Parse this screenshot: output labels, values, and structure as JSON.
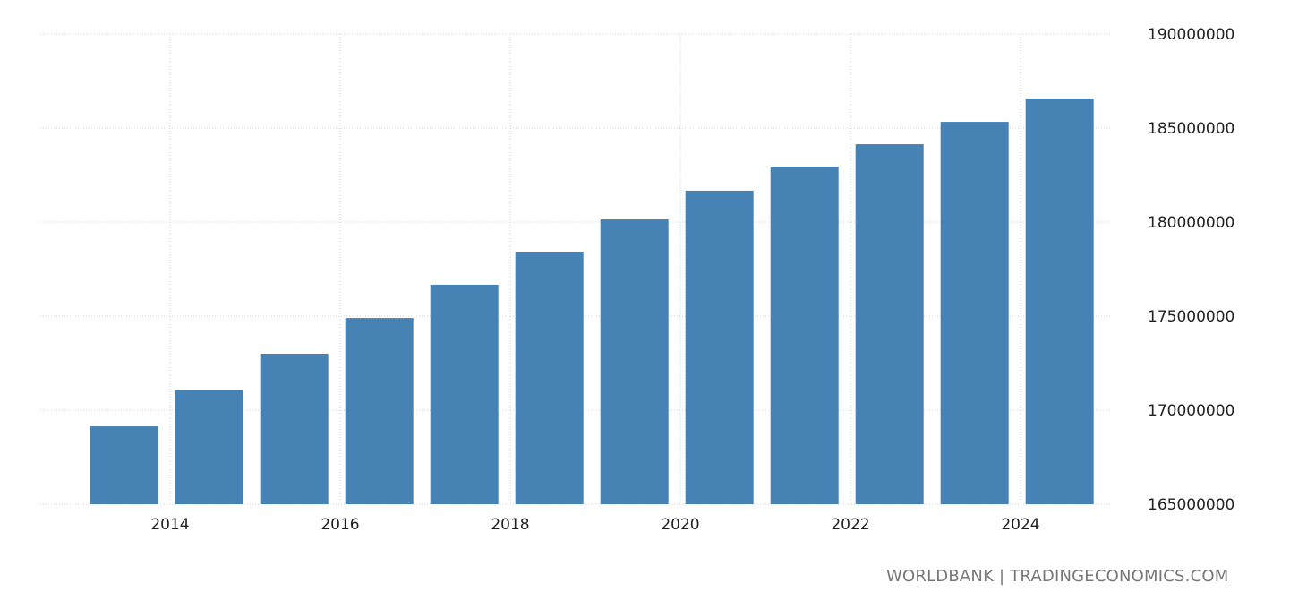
{
  "chart_data": {
    "type": "bar",
    "categories": [
      "2013",
      "2014",
      "2015",
      "2016",
      "2017",
      "2018",
      "2019",
      "2020",
      "2021",
      "2022",
      "2023",
      "2024"
    ],
    "values": [
      169140000,
      171050000,
      173000000,
      174900000,
      176670000,
      178430000,
      180140000,
      181670000,
      182950000,
      184140000,
      185330000,
      186570000
    ],
    "title": "",
    "xlabel": "",
    "ylabel": "",
    "ylim": [
      165000000,
      190000000
    ],
    "yticks": [
      "165000000",
      "170000000",
      "175000000",
      "180000000",
      "185000000",
      "190000000"
    ],
    "xticks": [
      "2014",
      "2016",
      "2018",
      "2020",
      "2022",
      "2024"
    ],
    "grid": true,
    "y_axis_side": "right",
    "bar_color": "#4682b4"
  },
  "footer": {
    "source": "WORLDBANK | TRADINGECONOMICS.COM"
  }
}
